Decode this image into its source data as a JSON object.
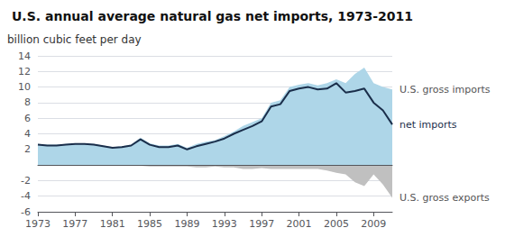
{
  "chart_data": {
    "type": "area",
    "title": "U.S. annual average natural gas net imports, 1973-2011",
    "ylabel": "billion cubic feet per day",
    "x": [
      1973,
      1974,
      1975,
      1976,
      1977,
      1978,
      1979,
      1980,
      1981,
      1982,
      1983,
      1984,
      1985,
      1986,
      1987,
      1988,
      1989,
      1990,
      1991,
      1992,
      1993,
      1994,
      1995,
      1996,
      1997,
      1998,
      1999,
      2000,
      2001,
      2002,
      2003,
      2004,
      2005,
      2006,
      2007,
      2008,
      2009,
      2010,
      2011
    ],
    "series": [
      {
        "name": "U.S. gross imports",
        "type": "area",
        "color": "#aed6e8",
        "values": [
          2.7,
          2.6,
          2.6,
          2.7,
          2.8,
          2.8,
          2.7,
          2.5,
          2.3,
          2.4,
          2.6,
          3.5,
          2.8,
          2.5,
          2.5,
          2.7,
          2.2,
          2.7,
          3.0,
          3.2,
          3.7,
          4.3,
          5.0,
          5.5,
          6.0,
          8.0,
          8.3,
          10.0,
          10.3,
          10.5,
          10.2,
          10.5,
          11.0,
          10.5,
          11.7,
          12.5,
          10.5,
          10.0,
          9.7
        ]
      },
      {
        "name": "U.S. gross exports",
        "type": "area",
        "color": "#c0c0c0",
        "values": [
          -0.1,
          -0.1,
          -0.1,
          -0.1,
          -0.1,
          -0.1,
          -0.1,
          -0.1,
          -0.1,
          -0.1,
          -0.1,
          -0.1,
          -0.2,
          -0.2,
          -0.2,
          -0.2,
          -0.2,
          -0.3,
          -0.3,
          -0.2,
          -0.3,
          -0.3,
          -0.5,
          -0.5,
          -0.4,
          -0.5,
          -0.5,
          -0.5,
          -0.5,
          -0.5,
          -0.5,
          -0.7,
          -1.0,
          -1.2,
          -2.2,
          -2.7,
          -1.2,
          -2.5,
          -4.2
        ]
      },
      {
        "name": "net imports",
        "type": "line",
        "color": "#1a2e4a",
        "values": [
          2.6,
          2.5,
          2.5,
          2.6,
          2.7,
          2.7,
          2.6,
          2.4,
          2.2,
          2.3,
          2.5,
          3.3,
          2.6,
          2.3,
          2.3,
          2.5,
          2.0,
          2.4,
          2.7,
          3.0,
          3.4,
          4.0,
          4.5,
          5.0,
          5.6,
          7.5,
          7.8,
          9.5,
          9.8,
          10.0,
          9.7,
          9.8,
          10.5,
          9.3,
          9.5,
          9.8,
          8.0,
          7.0,
          5.2
        ]
      }
    ],
    "xlim": [
      1973,
      2011
    ],
    "xticks": [
      1973,
      1977,
      1981,
      1985,
      1989,
      1993,
      1997,
      2001,
      2005,
      2009
    ],
    "ylim": [
      -6,
      14
    ],
    "yticks": [
      -6,
      -4,
      -2,
      2,
      4,
      6,
      8,
      10,
      12,
      14
    ],
    "grid": true
  }
}
